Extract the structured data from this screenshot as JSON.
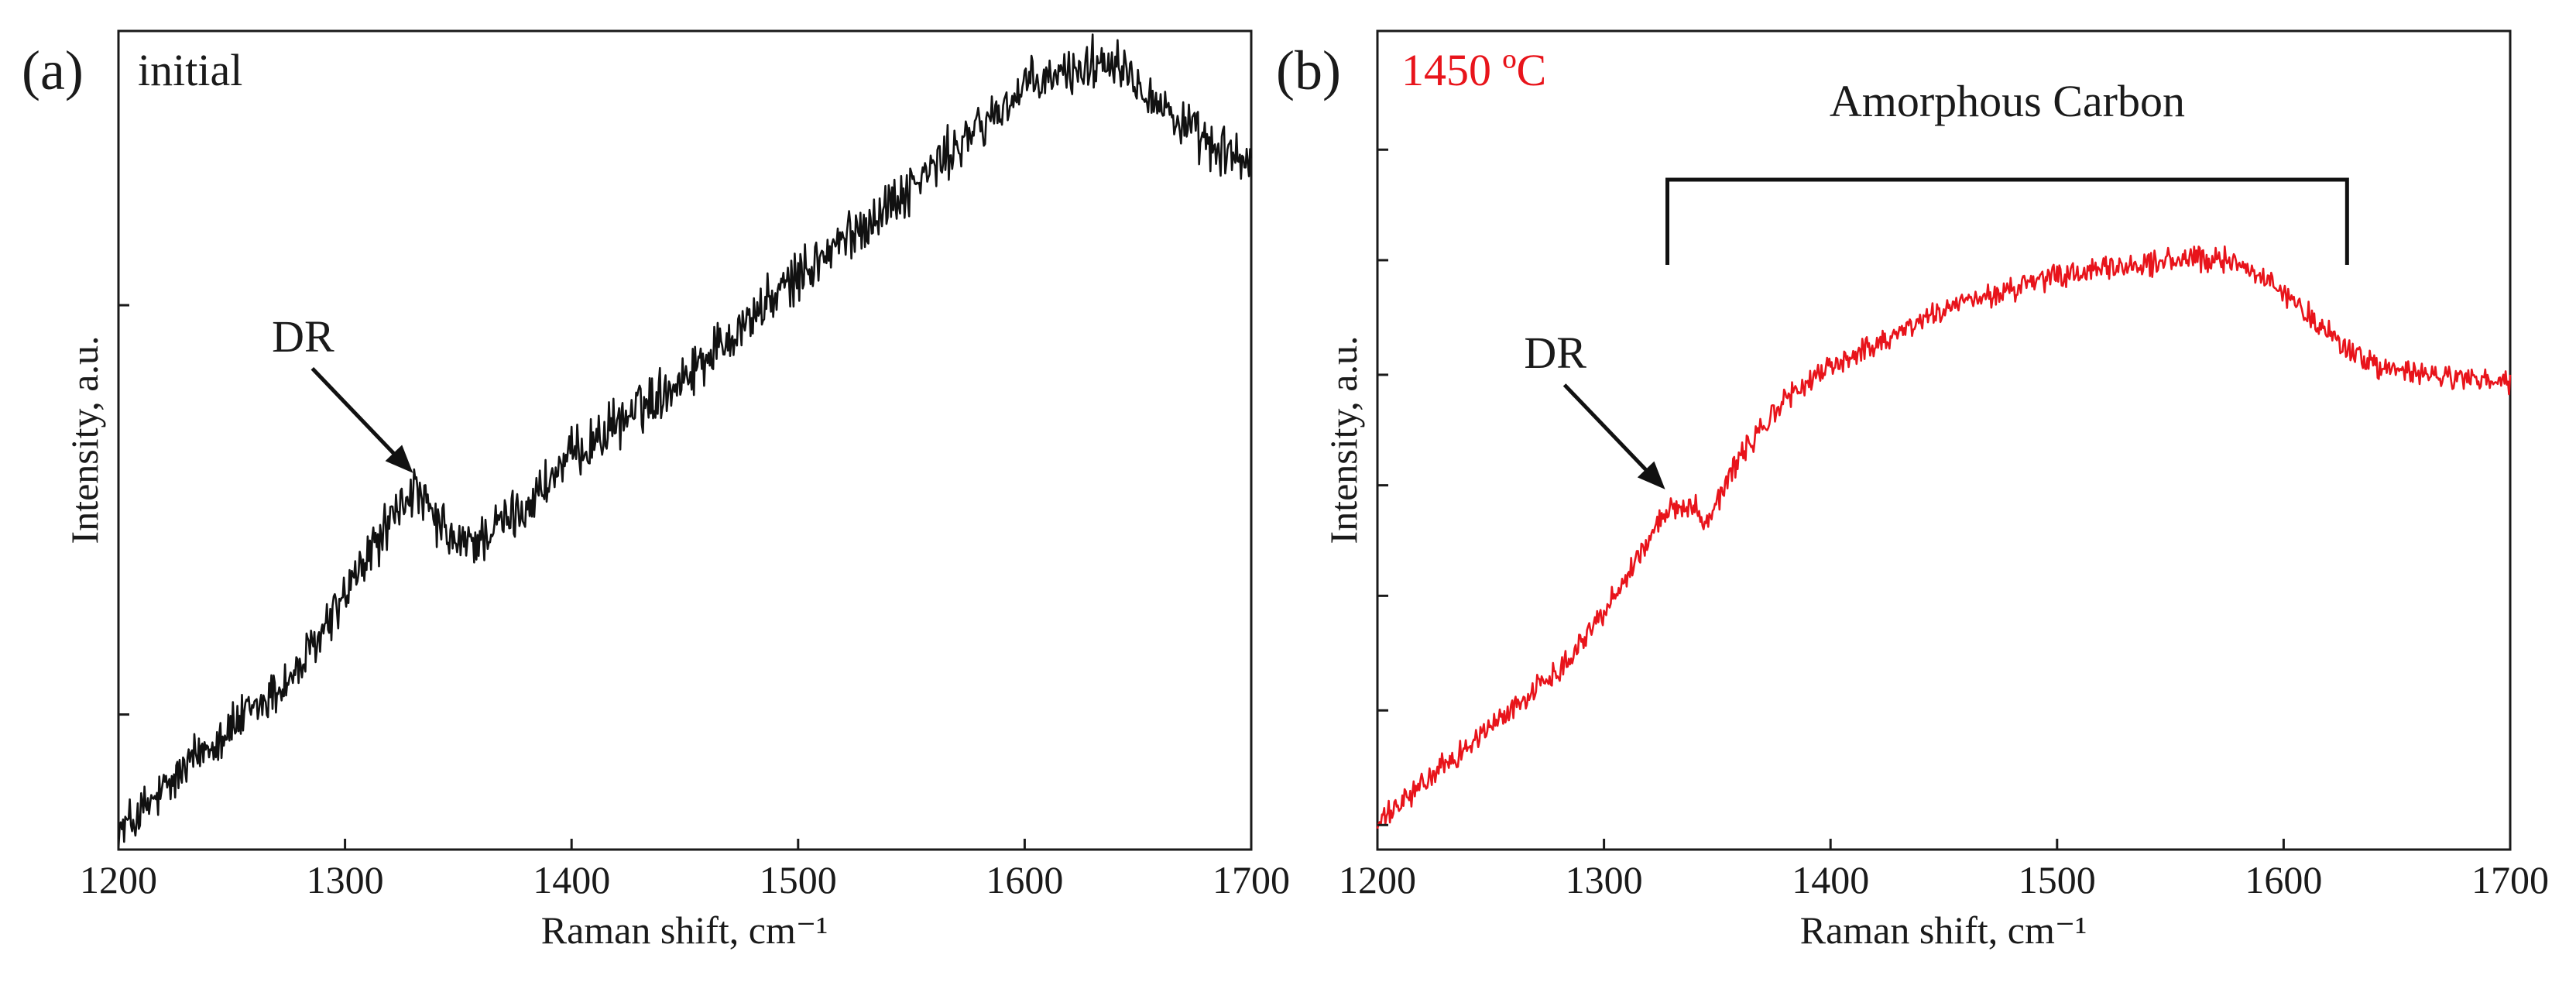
{
  "chart_data": [
    {
      "type": "line",
      "panel_label": "(a)",
      "title": "initial",
      "title_color": "#1a1a1a",
      "line_color": "#111111",
      "xlabel": "Raman shift, cm⁻¹",
      "ylabel": "Intensity, a.u.",
      "xlim": [
        1200,
        1700
      ],
      "ylim": [
        0,
        1
      ],
      "xticks": [
        1200,
        1300,
        1400,
        1500,
        1600,
        1700
      ],
      "xtick_labels": [
        "1200",
        "1300",
        "1400",
        "1500",
        "1600",
        "1700"
      ],
      "yticks": [
        0.165,
        0.665
      ],
      "noise": 0.025,
      "series": [
        {
          "name": "initial",
          "x": [
            1200,
            1220,
            1240,
            1260,
            1280,
            1300,
            1315,
            1330,
            1340,
            1350,
            1360,
            1380,
            1400,
            1450,
            1500,
            1550,
            1600,
            1620,
            1640,
            1660,
            1680,
            1700
          ],
          "values": [
            0.02,
            0.07,
            0.13,
            0.17,
            0.22,
            0.31,
            0.38,
            0.44,
            0.4,
            0.37,
            0.38,
            0.42,
            0.48,
            0.58,
            0.7,
            0.81,
            0.93,
            0.95,
            0.97,
            0.91,
            0.86,
            0.84
          ]
        }
      ],
      "annotations": [
        {
          "text": "DR",
          "x": 1330,
          "y": 0.46
        }
      ]
    },
    {
      "type": "line",
      "panel_label": "(b)",
      "title": "1450 ºC",
      "title_color": "#e8141b",
      "line_color": "#e8141b",
      "xlabel": "Raman shift, cm⁻¹",
      "ylabel": "Intensity, a.u.",
      "xlim": [
        1200,
        1700
      ],
      "ylim": [
        0,
        1
      ],
      "xticks": [
        1200,
        1300,
        1400,
        1500,
        1600,
        1700
      ],
      "xtick_labels": [
        "1200",
        "1300",
        "1400",
        "1500",
        "1600",
        "1700"
      ],
      "yticks": [
        0.03,
        0.17,
        0.31,
        0.445,
        0.58,
        0.72,
        0.855
      ],
      "noise": 0.012,
      "series": [
        {
          "name": "1450 ºC",
          "x": [
            1200,
            1220,
            1250,
            1280,
            1300,
            1320,
            1330,
            1340,
            1345,
            1360,
            1380,
            1400,
            1450,
            1500,
            1550,
            1580,
            1600,
            1620,
            1640,
            1660,
            1700
          ],
          "values": [
            0.03,
            0.08,
            0.15,
            0.22,
            0.29,
            0.38,
            0.42,
            0.42,
            0.4,
            0.48,
            0.55,
            0.59,
            0.66,
            0.7,
            0.72,
            0.72,
            0.68,
            0.63,
            0.59,
            0.58,
            0.57
          ]
        }
      ],
      "bracket": {
        "x_start": 1328,
        "x_end": 1628,
        "label": "Amorphous Carbon"
      },
      "annotations": [
        {
          "text": "DR",
          "x": 1327,
          "y": 0.44
        }
      ]
    }
  ]
}
